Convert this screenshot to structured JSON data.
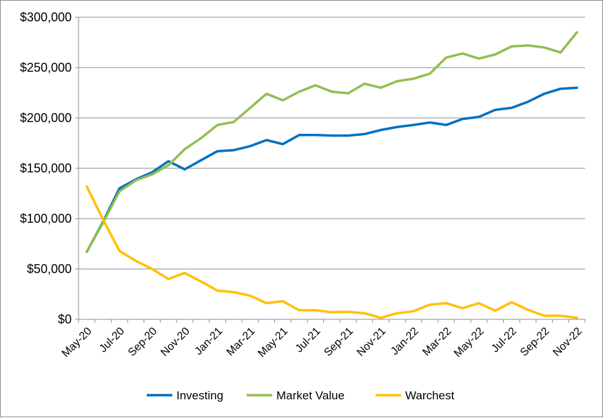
{
  "chart_data": {
    "type": "line",
    "title": "",
    "xlabel": "",
    "ylabel": "",
    "ylim": [
      0,
      300000
    ],
    "y_ticks": [
      0,
      50000,
      100000,
      150000,
      200000,
      250000,
      300000
    ],
    "y_tick_labels": [
      "$0",
      "$50,000",
      "$100,000",
      "$150,000",
      "$200,000",
      "$250,000",
      "$300,000"
    ],
    "x_tick_labels": [
      "May-20",
      "Jul-20",
      "Sep-20",
      "Nov-20",
      "Jan-21",
      "Mar-21",
      "May-21",
      "Jul-21",
      "Sep-21",
      "Nov-21",
      "Jan-22",
      "Mar-22",
      "May-22",
      "Jul-22",
      "Sep-22",
      "Nov-22"
    ],
    "grid": true,
    "legend_position": "bottom",
    "x": [
      "May-20",
      "Jun-20",
      "Jul-20",
      "Aug-20",
      "Sep-20",
      "Oct-20",
      "Nov-20",
      "Dec-20",
      "Jan-21",
      "Feb-21",
      "Mar-21",
      "Apr-21",
      "May-21",
      "Jun-21",
      "Jul-21",
      "Aug-21",
      "Sep-21",
      "Oct-21",
      "Nov-21",
      "Dec-21",
      "Jan-22",
      "Feb-22",
      "Mar-22",
      "Apr-22",
      "May-22",
      "Jun-22",
      "Jul-22",
      "Aug-22",
      "Sep-22",
      "Oct-22",
      "Nov-22"
    ],
    "series": [
      {
        "name": "Investing",
        "color": "#0070C0",
        "values": [
          67000,
          97000,
          130000,
          139000,
          146000,
          157000,
          149000,
          158000,
          167000,
          168000,
          172000,
          178000,
          174000,
          183000,
          183000,
          182500,
          182500,
          184000,
          188000,
          191000,
          193000,
          195500,
          193000,
          199000,
          201000,
          208000,
          210000,
          216000,
          224000,
          229000,
          230000
        ]
      },
      {
        "name": "Market Value",
        "color": "#92BE50",
        "values": [
          67000,
          96000,
          127000,
          138000,
          144000,
          153000,
          169000,
          180000,
          193000,
          196000,
          210000,
          224000,
          217500,
          226000,
          232500,
          226000,
          224500,
          234000,
          230000,
          236500,
          239000,
          244000,
          260000,
          264000,
          259000,
          263000,
          271000,
          272000,
          270000,
          265000,
          285000
        ]
      },
      {
        "name": "Warchest",
        "color": "#FFC000",
        "values": [
          132000,
          99000,
          68000,
          58000,
          50000,
          40000,
          46000,
          37500,
          28500,
          27000,
          23500,
          16000,
          18000,
          9000,
          9000,
          7000,
          7500,
          6000,
          1500,
          6000,
          8000,
          14500,
          16000,
          11000,
          16000,
          8500,
          17000,
          9500,
          3500,
          3500,
          1500
        ]
      }
    ]
  }
}
